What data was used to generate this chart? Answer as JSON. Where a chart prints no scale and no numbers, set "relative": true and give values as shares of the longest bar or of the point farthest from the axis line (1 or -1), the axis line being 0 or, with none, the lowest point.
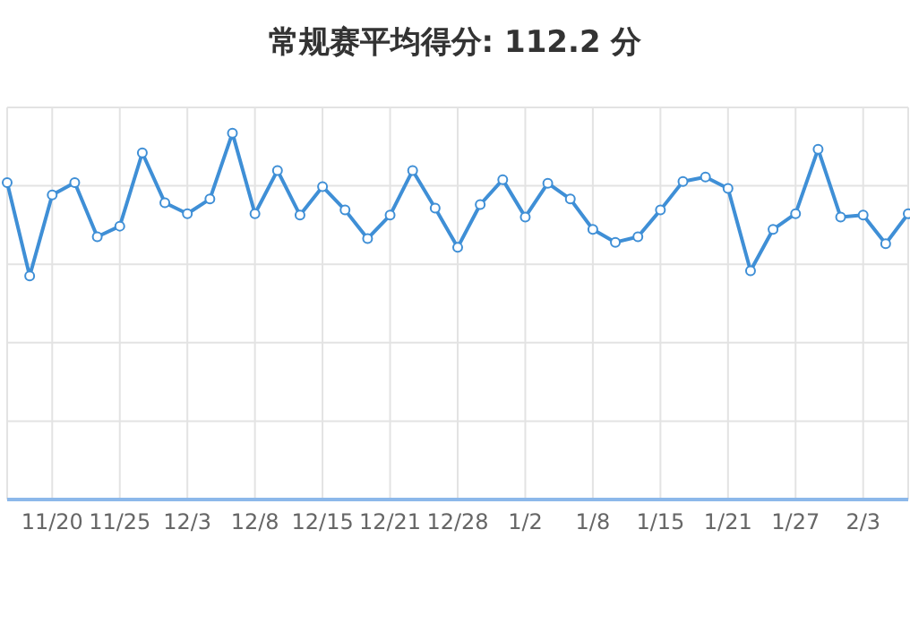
{
  "chart_data": {
    "type": "line",
    "title": "常规赛平均得分: 112.2 分",
    "relative": true,
    "grid": true,
    "marker": "circle",
    "line_style": "solid",
    "categories": [
      null,
      null,
      "11/20",
      null,
      null,
      "11/25",
      null,
      null,
      "12/3",
      null,
      null,
      "12/8",
      null,
      null,
      "12/15",
      null,
      null,
      "12/21",
      null,
      null,
      "12/28",
      null,
      null,
      "1/2",
      null,
      null,
      "1/8",
      null,
      null,
      "1/15",
      null,
      null,
      "1/21",
      null,
      null,
      "1/27",
      null,
      null,
      "2/3",
      null,
      null
    ],
    "series": [
      {
        "color": "#3f8fd6",
        "values": [
          0.865,
          0.61,
          0.831,
          0.865,
          0.717,
          0.746,
          0.946,
          0.81,
          0.78,
          0.82,
          1,
          0.78,
          0.898,
          0.776,
          0.854,
          0.79,
          0.712,
          0.776,
          0.898,
          0.795,
          0.688,
          0.805,
          0.873,
          0.771,
          0.863,
          0.82,
          0.737,
          0.702,
          0.717,
          0.79,
          0.868,
          0.88,
          0.849,
          0.624,
          0.737,
          0.78,
          0.956,
          0.771,
          0.776,
          0.698,
          0.78
        ]
      }
    ]
  }
}
